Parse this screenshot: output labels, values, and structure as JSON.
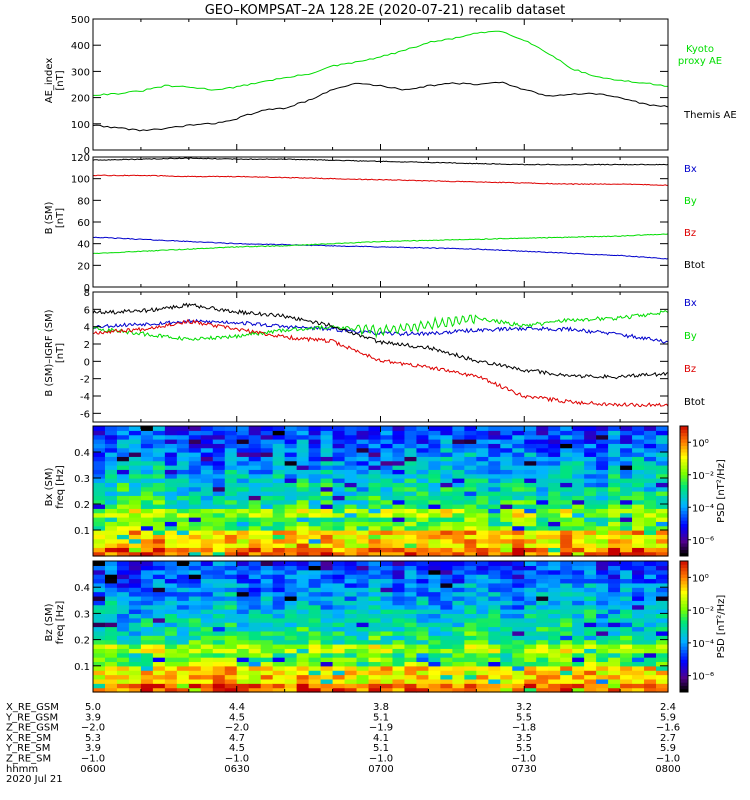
{
  "title": "GEO–KOMPSAT–2A 128.2E (2020-07-21) recalib dataset",
  "chart_data": [
    {
      "type": "line",
      "ylabel": [
        "AE_index",
        "[nT]"
      ],
      "ylim": [
        0,
        500
      ],
      "yticks": [
        0,
        100,
        200,
        300,
        400,
        500
      ],
      "x_range": [
        "0600",
        "0800"
      ],
      "x_minutes": [
        0,
        5,
        10,
        15,
        20,
        25,
        30,
        35,
        40,
        45,
        50,
        55,
        60,
        65,
        70,
        75,
        80,
        85,
        90,
        95,
        100,
        105,
        110,
        115,
        120
      ],
      "series": [
        {
          "name": "Kyoto proxy AE",
          "legend_lines": [
            "Kyoto",
            "proxy AE"
          ],
          "color": "#00dd00",
          "values": [
            210,
            215,
            225,
            245,
            240,
            230,
            240,
            260,
            275,
            290,
            320,
            335,
            355,
            380,
            410,
            425,
            445,
            455,
            420,
            370,
            310,
            280,
            265,
            255,
            245
          ]
        },
        {
          "name": "Themis AE",
          "legend_lines": [
            "Themis AE"
          ],
          "color": "#000000",
          "values": [
            95,
            85,
            75,
            80,
            95,
            100,
            120,
            150,
            160,
            190,
            230,
            255,
            245,
            230,
            245,
            255,
            250,
            260,
            230,
            205,
            215,
            215,
            200,
            175,
            165
          ]
        }
      ]
    },
    {
      "type": "line",
      "ylabel": [
        "B (SM)",
        "[nT]"
      ],
      "ylim": [
        0,
        120
      ],
      "yticks": [
        0,
        20,
        40,
        60,
        80,
        100,
        120
      ],
      "x_range": [
        "0600",
        "0800"
      ],
      "x_minutes": [
        0,
        10,
        20,
        30,
        40,
        50,
        60,
        70,
        80,
        90,
        100,
        110,
        120
      ],
      "legend_placement": "right",
      "series": [
        {
          "name": "Bx",
          "color": "#0000cc",
          "values": [
            46,
            44,
            42,
            40,
            39,
            38,
            37,
            36,
            35,
            33,
            31,
            29,
            26
          ]
        },
        {
          "name": "By",
          "color": "#00dd00",
          "values": [
            31,
            33,
            35,
            37,
            38,
            40,
            42,
            43,
            44,
            45,
            46,
            47,
            49
          ]
        },
        {
          "name": "Bz",
          "color": "#dd0000",
          "values": [
            103,
            103,
            102,
            102,
            101,
            100,
            99,
            98,
            97,
            96,
            95,
            95,
            94
          ]
        },
        {
          "name": "Btot",
          "color": "#000000",
          "values": [
            117,
            118,
            119,
            118,
            118,
            117,
            116,
            115,
            114,
            113,
            113,
            113,
            113
          ]
        }
      ]
    },
    {
      "type": "line",
      "ylabel": [
        "B (SM)–IGRF (SM)",
        "[nT]"
      ],
      "ylim": [
        -7,
        8
      ],
      "yticks": [
        -6,
        -4,
        -2,
        0,
        2,
        4,
        6,
        8
      ],
      "x_range": [
        "0600",
        "0800"
      ],
      "x_minutes": [
        0,
        10,
        20,
        30,
        40,
        50,
        60,
        70,
        80,
        90,
        100,
        110,
        120
      ],
      "legend_placement": "right",
      "series": [
        {
          "name": "Bx",
          "color": "#0000cc",
          "values": [
            4.0,
            4.3,
            4.6,
            4.5,
            4.0,
            3.7,
            3.2,
            3.2,
            3.6,
            3.8,
            3.7,
            3.1,
            2.2
          ]
        },
        {
          "name": "By",
          "color": "#00dd00",
          "values": [
            3.8,
            3.2,
            2.5,
            2.9,
            3.6,
            4.0,
            3.5,
            4.2,
            5.0,
            4.1,
            4.8,
            5.0,
            5.7
          ]
        },
        {
          "name": "Bz",
          "color": "#dd0000",
          "values": [
            3.3,
            3.7,
            4.6,
            3.7,
            2.8,
            2.3,
            0.1,
            -0.7,
            -1.7,
            -4.0,
            -4.7,
            -5.0,
            -5.0
          ]
        },
        {
          "name": "Btot",
          "color": "#000000",
          "values": [
            5.6,
            5.8,
            6.5,
            5.7,
            5.2,
            4.1,
            2.2,
            1.6,
            0.1,
            -1.0,
            -1.7,
            -1.8,
            -1.4
          ]
        }
      ]
    },
    {
      "type": "heatmap",
      "ylabel": [
        "Bx (SM)",
        "freq [Hz]"
      ],
      "ylim": [
        0,
        0.5
      ],
      "yticks": [
        0.1,
        0.2,
        0.3,
        0.4
      ],
      "x_range": [
        "0600",
        "0800"
      ],
      "colorbar": {
        "label": "PSD [nT²/Hz]",
        "ticks": [
          "10⁰",
          "10⁻²",
          "10⁻⁴",
          "10⁻⁶"
        ],
        "range": [
          -7,
          1
        ],
        "scale": "log"
      },
      "cols": 48,
      "rows": 30,
      "seed": 17
    },
    {
      "type": "heatmap",
      "ylabel": [
        "Bz (SM)",
        "freq [Hz]"
      ],
      "ylim": [
        0,
        0.5
      ],
      "yticks": [
        0.1,
        0.2,
        0.3,
        0.4
      ],
      "x_range": [
        "0600",
        "0800"
      ],
      "colorbar": {
        "label": "PSD [nT²/Hz]",
        "ticks": [
          "10⁰",
          "10⁻²",
          "10⁻⁴",
          "10⁻⁶"
        ],
        "range": [
          -7,
          1
        ],
        "scale": "log"
      },
      "cols": 48,
      "rows": 30,
      "seed": 91
    }
  ],
  "ephemeris": {
    "row_labels": [
      "X_RE_GSM",
      "Y_RE_GSM",
      "Z_RE_GSM",
      "X_RE_SM",
      "Y_RE_SM",
      "Z_RE_SM",
      "hhmm",
      "2020 Jul 21"
    ],
    "columns": [
      [
        "5.0",
        "3.9",
        "−2.0",
        "5.3",
        "3.9",
        "−1.0",
        "0600"
      ],
      [
        "4.4",
        "4.5",
        "−2.0",
        "4.7",
        "4.5",
        "−1.0",
        "0630"
      ],
      [
        "3.8",
        "5.1",
        "−1.9",
        "4.1",
        "5.1",
        "−1.0",
        "0700"
      ],
      [
        "3.2",
        "5.5",
        "−1.8",
        "3.5",
        "5.5",
        "−1.0",
        "0730"
      ],
      [
        "2.4",
        "5.9",
        "−1.6",
        "2.7",
        "5.9",
        "−1.0",
        "0800"
      ]
    ]
  }
}
